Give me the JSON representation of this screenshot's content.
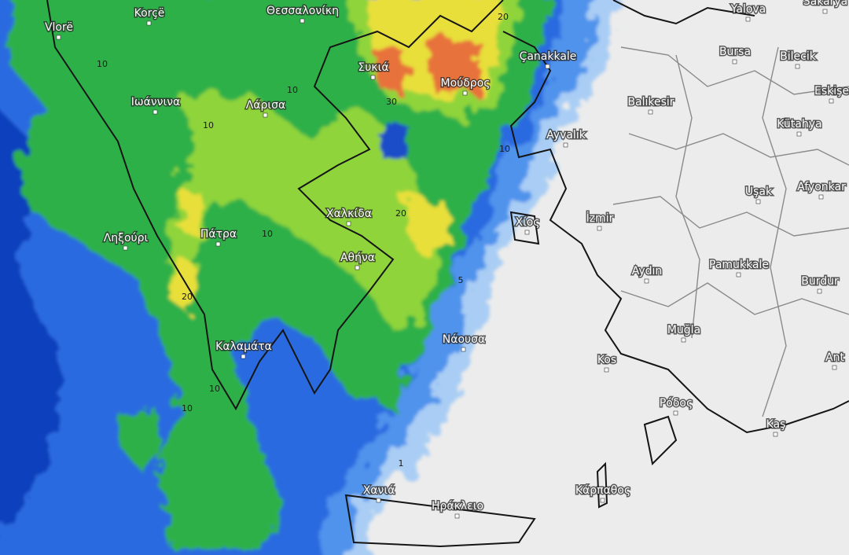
{
  "cities": [
    {
      "label": "Vlorë"
    },
    {
      "label": "Korçë"
    },
    {
      "label": "Θεσσαλονίκη"
    },
    {
      "label": "Yalova"
    },
    {
      "label": "Sakarya"
    },
    {
      "label": "Çanakkale"
    },
    {
      "label": "Bursa"
    },
    {
      "label": "Bilecik"
    },
    {
      "label": "Eskişe"
    },
    {
      "label": "Συκιά"
    },
    {
      "label": "Μούδρος"
    },
    {
      "label": "Ιωάννινα"
    },
    {
      "label": "Λάρισα"
    },
    {
      "label": "Balıkesir"
    },
    {
      "label": "Kütahya"
    },
    {
      "label": "Ayvalık"
    },
    {
      "label": "Uşak"
    },
    {
      "label": "Afyonkar"
    },
    {
      "label": "Χαλκίδα"
    },
    {
      "label": "Ληξούρι"
    },
    {
      "label": "Πάτρα"
    },
    {
      "label": "Αθήνα"
    },
    {
      "label": "Χίος"
    },
    {
      "label": "İzmir"
    },
    {
      "label": "Aydın"
    },
    {
      "label": "Pamukkale"
    },
    {
      "label": "Burdur"
    },
    {
      "label": "Muğla"
    },
    {
      "label": "Νάουσα"
    },
    {
      "label": "Kos"
    },
    {
      "label": "Ant"
    },
    {
      "label": "Καλαμάτα"
    },
    {
      "label": "Ρόδος"
    },
    {
      "label": "Kaş"
    },
    {
      "label": "Χανιά"
    },
    {
      "label": "Ηράκλειο"
    },
    {
      "label": "Κάρπαθος"
    }
  ],
  "contour_labels": [
    "20",
    "10",
    "30",
    "10",
    "10",
    "20",
    "10",
    "20",
    "10",
    "10",
    "5",
    "1",
    "10"
  ]
}
